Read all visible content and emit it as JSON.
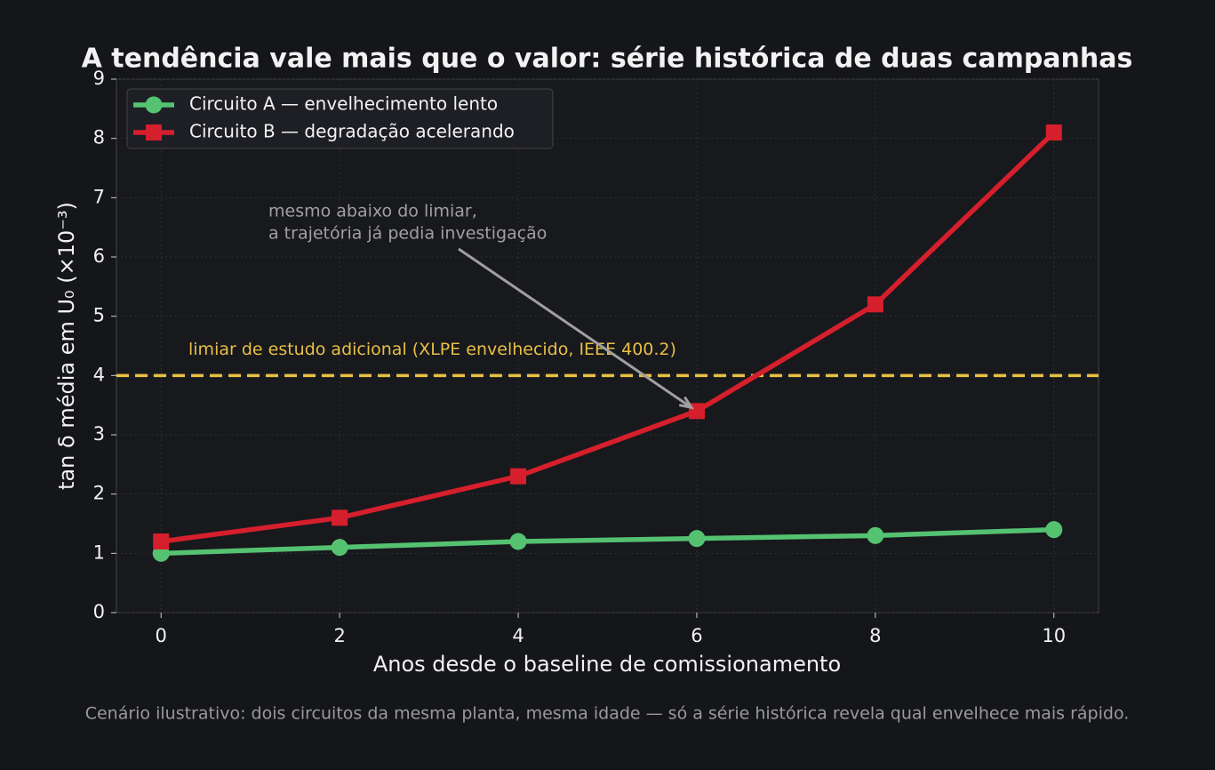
{
  "chart_data": {
    "type": "line",
    "title": "A tendência vale mais que o valor: série histórica de duas campanhas",
    "x_label": "Anos desde o baseline de comissionamento",
    "y_label": "tan δ média em U₀ (×10⁻³)",
    "x": [
      0,
      2,
      4,
      6,
      8,
      10
    ],
    "series": [
      {
        "name": "Circuito A — envelhecimento lento",
        "color": "#55c271",
        "marker": "circle",
        "values": [
          1.0,
          1.1,
          1.2,
          1.25,
          1.3,
          1.4
        ]
      },
      {
        "name": "Circuito B — degradação acelerando",
        "color": "#d61f2c",
        "marker": "square",
        "values": [
          1.2,
          1.6,
          2.3,
          3.4,
          5.2,
          8.1
        ]
      }
    ],
    "threshold": {
      "value": 4,
      "label": "limiar de estudo adicional (XLPE envelhecido, IEEE 400.2)",
      "color": "#e8bf45"
    },
    "annotation": {
      "lines": [
        "mesmo abaixo do limiar,",
        "a trajetória já pedia investigação"
      ],
      "x": 6,
      "y": 3.4
    },
    "xlim": [
      -0.5,
      10.5
    ],
    "xticks": [
      0,
      2,
      4,
      6,
      8,
      10
    ],
    "ylim": [
      0,
      9
    ],
    "yticks": [
      0,
      1,
      2,
      3,
      4,
      5,
      6,
      7,
      8,
      9
    ],
    "grid": true,
    "legend": "upper left",
    "caption": "Cenário ilustrativo: dois circuitos da mesma planta, mesma idade — só a série histórica revela qual envelhece mais rápido."
  }
}
